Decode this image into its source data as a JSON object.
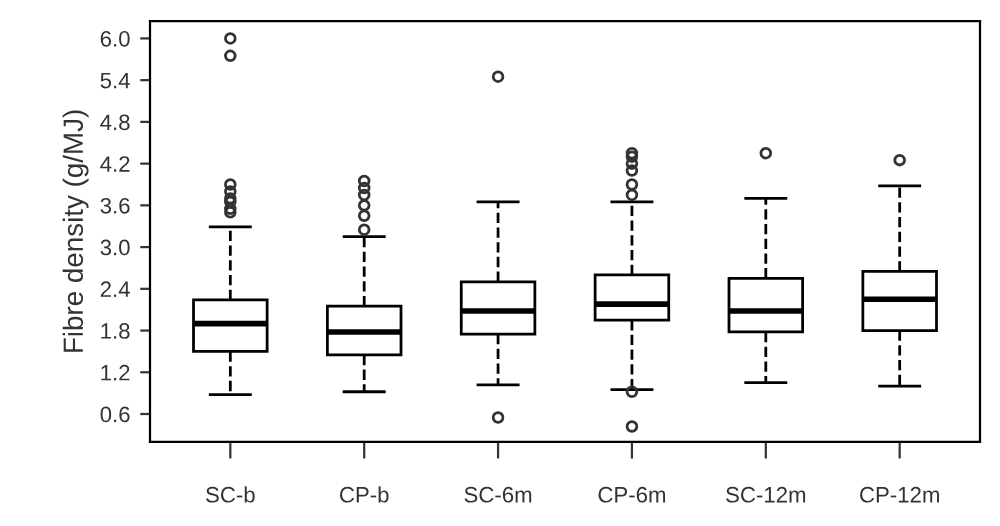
{
  "chart_data": {
    "type": "box",
    "ylabel": "Fibre density (g/MJ)",
    "categories": [
      "SC-b",
      "CP-b",
      "SC-6m",
      "CP-6m",
      "SC-12m",
      "CP-12m"
    ],
    "boxes": [
      {
        "low": 0.88,
        "q1": 1.5,
        "median": 1.9,
        "q3": 2.24,
        "high": 3.29,
        "outliers": [
          3.5,
          3.55,
          3.65,
          3.7,
          3.8,
          3.9,
          5.75,
          6.0
        ]
      },
      {
        "low": 0.92,
        "q1": 1.45,
        "median": 1.78,
        "q3": 2.15,
        "high": 3.15,
        "outliers": [
          3.25,
          3.45,
          3.6,
          3.75,
          3.85,
          3.95
        ]
      },
      {
        "low": 1.02,
        "q1": 1.75,
        "median": 2.08,
        "q3": 2.5,
        "high": 3.65,
        "outliers": [
          0.55,
          5.45
        ]
      },
      {
        "low": 0.95,
        "q1": 1.95,
        "median": 2.18,
        "q3": 2.6,
        "high": 3.65,
        "outliers": [
          0.42,
          0.92,
          3.75,
          3.9,
          4.1,
          4.2,
          4.3,
          4.35
        ]
      },
      {
        "low": 1.05,
        "q1": 1.78,
        "median": 2.08,
        "q3": 2.55,
        "high": 3.7,
        "outliers": [
          4.35
        ]
      },
      {
        "low": 1.0,
        "q1": 1.8,
        "median": 2.25,
        "q3": 2.65,
        "high": 3.88,
        "outliers": [
          4.25
        ]
      }
    ],
    "color": "#ffffff",
    "ylim": [
      0.2,
      6.25
    ],
    "yticks": [
      0.6,
      1.2,
      1.8,
      2.4,
      {
        "value": 3,
        "label": "3.0"
      },
      3.6,
      4.2,
      4.8,
      5.4,
      {
        "value": 6,
        "label": "6.0"
      }
    ],
    "grid": false
  }
}
